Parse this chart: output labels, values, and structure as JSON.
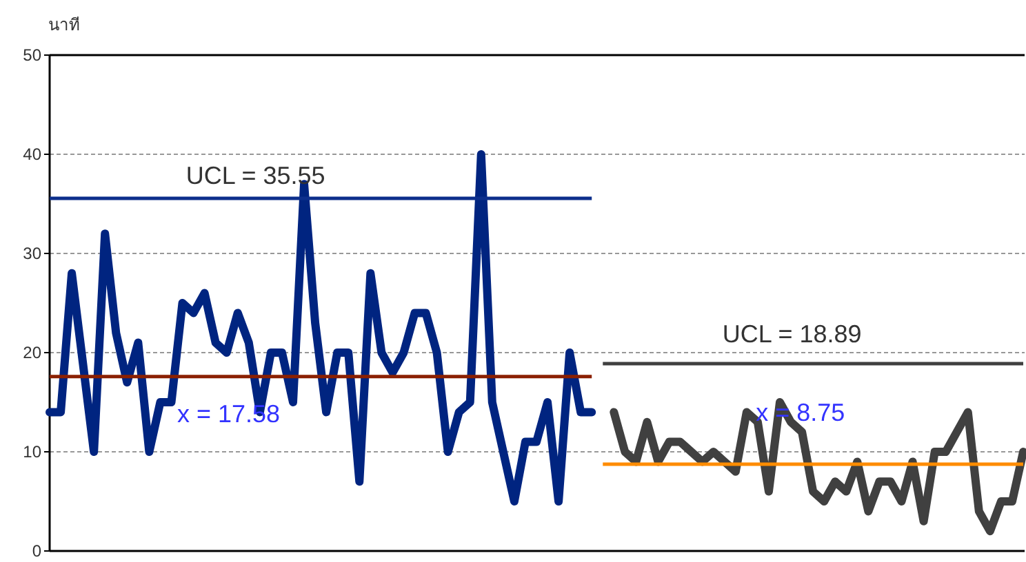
{
  "chart_data": {
    "type": "line",
    "ylabel": "นาที",
    "categories": [
      null,
      null,
      null,
      null,
      null,
      null,
      null,
      null,
      null,
      null,
      null,
      null,
      null,
      null,
      null,
      null,
      null,
      null,
      null,
      null,
      null,
      null,
      null,
      null,
      null,
      null,
      null,
      null,
      null,
      null,
      null,
      null,
      null,
      null,
      null,
      null,
      null,
      null,
      null,
      null,
      null,
      null,
      null,
      null,
      null,
      null,
      null,
      null,
      null,
      null,
      null,
      null,
      null,
      null,
      null,
      null,
      null,
      null,
      null,
      null,
      null,
      null,
      null,
      null,
      null,
      null,
      null,
      null,
      null,
      null,
      null,
      null,
      null,
      null,
      null,
      null,
      null,
      null,
      null,
      null,
      null,
      null,
      null,
      null,
      null,
      null,
      null,
      null,
      null
    ],
    "ylim": [
      0,
      50
    ],
    "yticks": [
      0,
      10,
      20,
      30,
      40,
      50
    ],
    "grid": "y",
    "tick_labels": "y",
    "marker": "none",
    "series": [
      {
        "color": "#002480",
        "values": [
          14,
          14,
          28,
          19,
          10,
          32,
          22,
          17,
          21,
          10,
          15,
          15,
          25,
          24,
          26,
          21,
          20,
          24,
          21,
          14,
          20,
          20,
          15,
          37,
          23,
          14,
          20,
          20,
          7,
          28,
          20,
          18,
          20,
          24,
          24,
          20,
          10,
          14,
          15,
          40,
          15,
          10,
          5,
          11,
          11,
          15,
          5,
          20,
          14,
          14,
          null,
          null,
          null,
          null,
          null,
          null,
          null,
          null,
          null,
          null,
          null,
          null,
          null,
          null,
          null,
          null,
          null,
          null,
          null,
          null,
          null,
          null,
          null,
          null,
          null,
          null,
          null,
          null,
          null,
          null,
          null,
          null,
          null,
          null,
          null,
          null,
          null,
          null,
          null
        ]
      },
      {
        "color": "#404040",
        "values": [
          null,
          null,
          null,
          null,
          null,
          null,
          null,
          null,
          null,
          null,
          null,
          null,
          null,
          null,
          null,
          null,
          null,
          null,
          null,
          null,
          null,
          null,
          null,
          null,
          null,
          null,
          null,
          null,
          null,
          null,
          null,
          null,
          null,
          null,
          null,
          null,
          null,
          null,
          null,
          null,
          null,
          null,
          null,
          null,
          null,
          null,
          null,
          null,
          null,
          null,
          null,
          14,
          10,
          9,
          13,
          9,
          11,
          11,
          10,
          9,
          10,
          9,
          8,
          14,
          13,
          6,
          15,
          13,
          12,
          6,
          5,
          7,
          6,
          9,
          4,
          7,
          7,
          5,
          9,
          3,
          10,
          10,
          12,
          14,
          4,
          2,
          5,
          5,
          10
        ]
      },
      {
        "color": "#0d2f8c",
        "values": [
          35.55,
          35.55,
          35.55,
          35.55,
          35.55,
          35.55,
          35.55,
          35.55,
          35.55,
          35.55,
          35.55,
          35.55,
          35.55,
          35.55,
          35.55,
          35.55,
          35.55,
          35.55,
          35.55,
          35.55,
          35.55,
          35.55,
          35.55,
          35.55,
          35.55,
          35.55,
          35.55,
          35.55,
          35.55,
          35.55,
          35.55,
          35.55,
          35.55,
          35.55,
          35.55,
          35.55,
          35.55,
          35.55,
          35.55,
          35.55,
          35.55,
          35.55,
          35.55,
          35.55,
          35.55,
          35.55,
          35.55,
          35.55,
          35.55,
          35.55,
          null,
          null,
          null,
          null,
          null,
          null,
          null,
          null,
          null,
          null,
          null,
          null,
          null,
          null,
          null,
          null,
          null,
          null,
          null,
          null,
          null,
          null,
          null,
          null,
          null,
          null,
          null,
          null,
          null,
          null,
          null,
          null,
          null,
          null,
          null,
          null,
          null,
          null,
          null
        ]
      },
      {
        "color": "#8b2000",
        "values": [
          17.58,
          17.58,
          17.58,
          17.58,
          17.58,
          17.58,
          17.58,
          17.58,
          17.58,
          17.58,
          17.58,
          17.58,
          17.58,
          17.58,
          17.58,
          17.58,
          17.58,
          17.58,
          17.58,
          17.58,
          17.58,
          17.58,
          17.58,
          17.58,
          17.58,
          17.58,
          17.58,
          17.58,
          17.58,
          17.58,
          17.58,
          17.58,
          17.58,
          17.58,
          17.58,
          17.58,
          17.58,
          17.58,
          17.58,
          17.58,
          17.58,
          17.58,
          17.58,
          17.58,
          17.58,
          17.58,
          17.58,
          17.58,
          17.58,
          17.58,
          null,
          null,
          null,
          null,
          null,
          null,
          null,
          null,
          null,
          null,
          null,
          null,
          null,
          null,
          null,
          null,
          null,
          null,
          null,
          null,
          null,
          null,
          null,
          null,
          null,
          null,
          null,
          null,
          null,
          null,
          null,
          null,
          null,
          null,
          null,
          null,
          null,
          null,
          null
        ]
      },
      {
        "color": "#404040",
        "values": [
          null,
          null,
          null,
          null,
          null,
          null,
          null,
          null,
          null,
          null,
          null,
          null,
          null,
          null,
          null,
          null,
          null,
          null,
          null,
          null,
          null,
          null,
          null,
          null,
          null,
          null,
          null,
          null,
          null,
          null,
          null,
          null,
          null,
          null,
          null,
          null,
          null,
          null,
          null,
          null,
          null,
          null,
          null,
          null,
          null,
          null,
          null,
          null,
          null,
          null,
          18.89,
          18.89,
          18.89,
          18.89,
          18.89,
          18.89,
          18.89,
          18.89,
          18.89,
          18.89,
          18.89,
          18.89,
          18.89,
          18.89,
          18.89,
          18.89,
          18.89,
          18.89,
          18.89,
          18.89,
          18.89,
          18.89,
          18.89,
          18.89,
          18.89,
          18.89,
          18.89,
          18.89,
          18.89,
          18.89,
          18.89,
          18.89,
          18.89,
          18.89,
          18.89,
          18.89,
          18.89,
          18.89,
          18.89
        ]
      },
      {
        "color": "#ff8c00",
        "values": [
          null,
          null,
          null,
          null,
          null,
          null,
          null,
          null,
          null,
          null,
          null,
          null,
          null,
          null,
          null,
          null,
          null,
          null,
          null,
          null,
          null,
          null,
          null,
          null,
          null,
          null,
          null,
          null,
          null,
          null,
          null,
          null,
          null,
          null,
          null,
          null,
          null,
          null,
          null,
          null,
          null,
          null,
          null,
          null,
          null,
          null,
          null,
          null,
          null,
          null,
          8.75,
          8.75,
          8.75,
          8.75,
          8.75,
          8.75,
          8.75,
          8.75,
          8.75,
          8.75,
          8.75,
          8.75,
          8.75,
          8.75,
          8.75,
          8.75,
          8.75,
          8.75,
          8.75,
          8.75,
          8.75,
          8.75,
          8.75,
          8.75,
          8.75,
          8.75,
          8.75,
          8.75,
          8.75,
          8.75,
          8.75,
          8.75,
          8.75,
          8.75,
          8.75,
          8.75,
          8.75,
          8.75,
          8.75
        ]
      }
    ],
    "annotations": [
      "UCL = 35.55",
      "x = 17.58",
      "UCL =  18.89",
      "x =  8.75"
    ]
  }
}
